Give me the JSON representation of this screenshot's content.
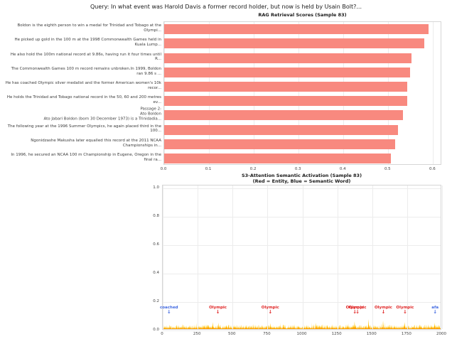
{
  "figure": {
    "title": "Query: In what event was Harold Davis a former record holder, but now is held by Usain Bolt?...",
    "background": "#ffffff"
  },
  "chart_data": [
    {
      "type": "bar",
      "orientation": "horizontal",
      "title": "RAG Retrieval Scores (Sample 83)",
      "categories": [
        "Boldon is the eighth person to win a medal for Trinidad and Tobago at the Olympi...",
        "He picked up gold in the 100 m at the 1998 Commonwealth Games held in Kuala Lump...",
        "He also hold the 100m national record at 9.86s, having run it four times until R...",
        "The Commonwealth Games 100 m record remains unbroken.In 1999, Boldon ran 9.86 s ...",
        "He has coached Olympic silver medalist and the former American women's 10k recor...",
        "He holds the Trinidad and Tobago national record in the 50, 60 and 200 metres ev...",
        "Passage 2:\nAto Boldon\nAto Jabari Boldon  (born 30 December 1973) is a Trinidadia...",
        "The following year at the 1996 Summer Olympics, he again placed third in the 100...",
        "Ngonidzashe Makusha later equalled this record at the 2011 NCAA Championships in...",
        "In 1996, he secured an NCAA 100 m Championship in Eugene, Oregon in the final ra..."
      ],
      "values": [
        0.59,
        0.58,
        0.552,
        0.548,
        0.543,
        0.543,
        0.532,
        0.521,
        0.516,
        0.506
      ],
      "xlabel": "",
      "ylabel": "",
      "xlim": [
        0.0,
        0.62
      ],
      "xticks": [
        "0.0",
        "0.1",
        "0.2",
        "0.3",
        "0.4",
        "0.5",
        "0.6"
      ],
      "bar_color": "#f8897f",
      "grid": true,
      "legend": "none"
    },
    {
      "type": "line",
      "title": "S3-Attention Semantic Activation (Sample 83)",
      "subtitle": "(Red = Entity, Blue = Semantic Word)",
      "xlim": [
        0,
        2000
      ],
      "ylim": [
        0.0,
        1.0
      ],
      "xticks": [
        0,
        250,
        500,
        750,
        1000,
        1250,
        1500,
        1750,
        2000
      ],
      "yticks": [
        "0.0",
        "0.2",
        "0.4",
        "0.6",
        "0.8",
        "1.0"
      ],
      "grid": true,
      "signal": {
        "description": "dense spiky activation trace along baseline, amplitudes mostly 0.005-0.04",
        "color_fill": "#ffc400",
        "color_low": "#ff9800",
        "n_points": 2000,
        "seed": 83,
        "base_amplitude": 0.03,
        "spikes": [
          {
            "x": 360,
            "h": 0.05
          },
          {
            "x": 400,
            "h": 0.045
          },
          {
            "x": 775,
            "h": 0.042
          },
          {
            "x": 1100,
            "h": 0.045
          },
          {
            "x": 1380,
            "h": 0.055
          },
          {
            "x": 1480,
            "h": 0.07
          },
          {
            "x": 1585,
            "h": 0.06
          },
          {
            "x": 1740,
            "h": 0.05
          },
          {
            "x": 1955,
            "h": 0.045
          }
        ]
      },
      "annotations": [
        {
          "text": "coached",
          "x": 50,
          "y": 0.15,
          "color": "#4169e1",
          "kind": "semantic"
        },
        {
          "text": "Olympic",
          "x": 400,
          "y": 0.15,
          "color": "#e02424",
          "kind": "entity"
        },
        {
          "text": "Olympic",
          "x": 775,
          "y": 0.15,
          "color": "#e02424",
          "kind": "entity"
        },
        {
          "text": "Olympic",
          "x": 1380,
          "y": 0.15,
          "color": "#e02424",
          "kind": "entity"
        },
        {
          "text": "Olympic",
          "x": 1400,
          "y": 0.15,
          "color": "#e02424",
          "kind": "entity"
        },
        {
          "text": "Olympic",
          "x": 1585,
          "y": 0.15,
          "color": "#e02424",
          "kind": "entity"
        },
        {
          "text": "Olympic",
          "x": 1740,
          "y": 0.15,
          "color": "#e02424",
          "kind": "entity"
        },
        {
          "text": "afa",
          "x": 1955,
          "y": 0.15,
          "color": "#4169e1",
          "kind": "semantic"
        }
      ]
    }
  ]
}
